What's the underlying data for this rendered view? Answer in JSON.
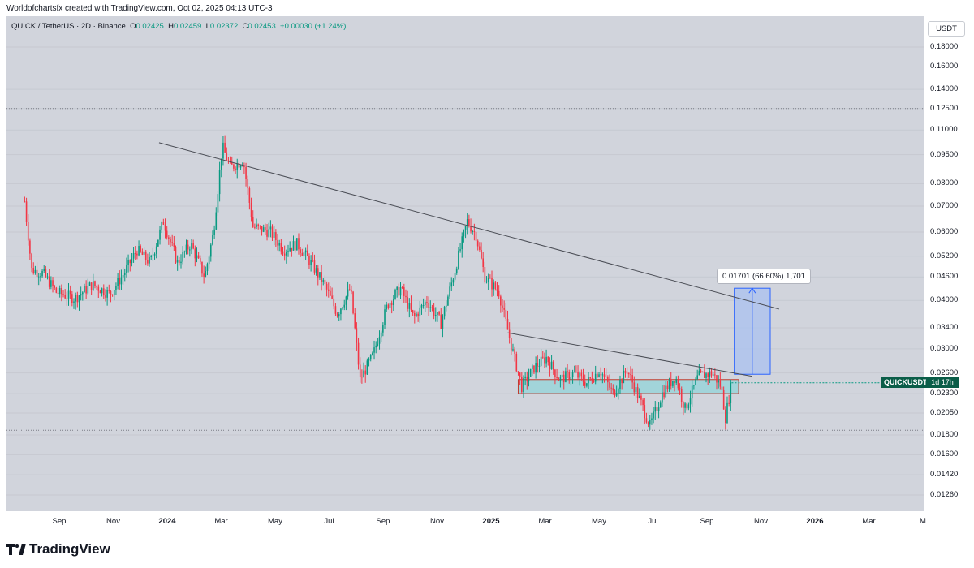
{
  "attribution": "Worldofchartsfx created with TradingView.com, Oct 02, 2025 04:13 UTC-3",
  "legend": {
    "symbol": "QUICK / TetherUS · 2D · Binance",
    "o_label": "O",
    "o_value": "0.02425",
    "h_label": "H",
    "h_value": "0.02459",
    "l_label": "L",
    "l_value": "0.02372",
    "c_label": "C",
    "c_value": "0.02453",
    "change": "+0.00030 (+1.24%)"
  },
  "currency_badge": "USDT",
  "symbol_tag": "QUICKUSDT",
  "symbol_countdown": "1d 17h",
  "measure_label": "0.01701 (66.60%) 1,701",
  "footer_brand": "TradingView",
  "colors": {
    "background": "#d1d4dc",
    "up_candle": "#089981",
    "down_candle": "#f23645",
    "symbol_tag": "#0a5d48",
    "trendline": "#4a4d55",
    "support_zone_fill": "#8fd4d8",
    "support_zone_border": "#c0392b",
    "projection_fill": "#a9c1f0",
    "projection_line": "#2962ff"
  },
  "chart_data": {
    "type": "candlestick",
    "scale": "log",
    "price_ticks": [
      "0.18000",
      "0.16000",
      "0.14000",
      "0.12500",
      "0.11000",
      "0.09500",
      "0.08000",
      "0.07000",
      "0.06000",
      "0.05200",
      "0.04600",
      "0.04000",
      "0.03400",
      "0.03000",
      "0.02600",
      "0.02300",
      "0.02050",
      "0.01800",
      "0.01600",
      "0.01420",
      "0.01260"
    ],
    "time_ticks": [
      {
        "label": "Sep",
        "bold": false
      },
      {
        "label": "Nov",
        "bold": false
      },
      {
        "label": "2024",
        "bold": true
      },
      {
        "label": "Mar",
        "bold": false
      },
      {
        "label": "May",
        "bold": false
      },
      {
        "label": "Jul",
        "bold": false
      },
      {
        "label": "Sep",
        "bold": false
      },
      {
        "label": "Nov",
        "bold": false
      },
      {
        "label": "2025",
        "bold": true
      },
      {
        "label": "Mar",
        "bold": false
      },
      {
        "label": "May",
        "bold": false
      },
      {
        "label": "Jul",
        "bold": false
      },
      {
        "label": "Sep",
        "bold": false
      },
      {
        "label": "Nov",
        "bold": false
      },
      {
        "label": "2026",
        "bold": true
      },
      {
        "label": "Mar",
        "bold": false
      },
      {
        "label": "M",
        "bold": false
      }
    ],
    "price_path": [
      {
        "t": "2023-07-20",
        "p": 0.072
      },
      {
        "t": "2023-07-28",
        "p": 0.048
      },
      {
        "t": "2023-08-10",
        "p": 0.047
      },
      {
        "t": "2023-08-25",
        "p": 0.042
      },
      {
        "t": "2023-09-15",
        "p": 0.0405
      },
      {
        "t": "2023-10-05",
        "p": 0.044
      },
      {
        "t": "2023-10-25",
        "p": 0.0415
      },
      {
        "t": "2023-11-10",
        "p": 0.047
      },
      {
        "t": "2023-11-25",
        "p": 0.054
      },
      {
        "t": "2023-12-10",
        "p": 0.05
      },
      {
        "t": "2023-12-25",
        "p": 0.064
      },
      {
        "t": "2024-01-10",
        "p": 0.05
      },
      {
        "t": "2024-01-25",
        "p": 0.056
      },
      {
        "t": "2024-02-10",
        "p": 0.046
      },
      {
        "t": "2024-02-20",
        "p": 0.06
      },
      {
        "t": "2024-03-01",
        "p": 0.1
      },
      {
        "t": "2024-03-10",
        "p": 0.088
      },
      {
        "t": "2024-03-25",
        "p": 0.092
      },
      {
        "t": "2024-04-05",
        "p": 0.062
      },
      {
        "t": "2024-04-25",
        "p": 0.06
      },
      {
        "t": "2024-05-10",
        "p": 0.054
      },
      {
        "t": "2024-05-25",
        "p": 0.056
      },
      {
        "t": "2024-06-10",
        "p": 0.05
      },
      {
        "t": "2024-06-25",
        "p": 0.044
      },
      {
        "t": "2024-07-10",
        "p": 0.037
      },
      {
        "t": "2024-07-25",
        "p": 0.043
      },
      {
        "t": "2024-08-05",
        "p": 0.025
      },
      {
        "t": "2024-08-20",
        "p": 0.029
      },
      {
        "t": "2024-09-05",
        "p": 0.039
      },
      {
        "t": "2024-09-20",
        "p": 0.043
      },
      {
        "t": "2024-10-05",
        "p": 0.036
      },
      {
        "t": "2024-10-20",
        "p": 0.04
      },
      {
        "t": "2024-11-05",
        "p": 0.035
      },
      {
        "t": "2024-11-20",
        "p": 0.047
      },
      {
        "t": "2024-12-05",
        "p": 0.064
      },
      {
        "t": "2024-12-15",
        "p": 0.059
      },
      {
        "t": "2024-12-25",
        "p": 0.046
      },
      {
        "t": "2025-01-10",
        "p": 0.042
      },
      {
        "t": "2025-01-25",
        "p": 0.03
      },
      {
        "t": "2025-02-05",
        "p": 0.024
      },
      {
        "t": "2025-02-20",
        "p": 0.027
      },
      {
        "t": "2025-03-05",
        "p": 0.0285
      },
      {
        "t": "2025-03-20",
        "p": 0.025
      },
      {
        "t": "2025-04-05",
        "p": 0.026
      },
      {
        "t": "2025-04-20",
        "p": 0.0245
      },
      {
        "t": "2025-05-05",
        "p": 0.0265
      },
      {
        "t": "2025-05-20",
        "p": 0.023
      },
      {
        "t": "2025-06-05",
        "p": 0.0265
      },
      {
        "t": "2025-06-20",
        "p": 0.022
      },
      {
        "t": "2025-07-01",
        "p": 0.019
      },
      {
        "t": "2025-07-15",
        "p": 0.023
      },
      {
        "t": "2025-07-30",
        "p": 0.0255
      },
      {
        "t": "2025-08-10",
        "p": 0.021
      },
      {
        "t": "2025-08-25",
        "p": 0.0255
      },
      {
        "t": "2025-09-10",
        "p": 0.026
      },
      {
        "t": "2025-09-20",
        "p": 0.024
      },
      {
        "t": "2025-09-25",
        "p": 0.02
      },
      {
        "t": "2025-10-02",
        "p": 0.02453
      }
    ],
    "annotations": {
      "upper_trendline": {
        "from": {
          "t": "2023-12-20",
          "p": 0.102
        },
        "to": {
          "t": "2025-11-25",
          "p": 0.038
        }
      },
      "lower_trendline": {
        "from": {
          "t": "2025-01-20",
          "p": 0.033
        },
        "to": {
          "t": "2025-10-25",
          "p": 0.0255
        }
      },
      "support_zone": {
        "from": "2025-02-01",
        "to": "2025-10-10",
        "top": 0.025,
        "bottom": 0.023
      },
      "projection": {
        "from": "2025-10-05",
        "to": "2025-11-15",
        "bottom": 0.0258,
        "top": 0.043
      },
      "dotted_levels": [
        0.125,
        0.0185
      ]
    }
  }
}
